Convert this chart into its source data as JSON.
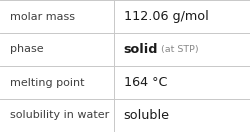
{
  "rows": [
    {
      "label": "molar mass",
      "value": "112.06 g/mol",
      "value_suffix": null,
      "value_bold": false
    },
    {
      "label": "phase",
      "value": "solid",
      "value_suffix": "(at STP)",
      "value_bold": true
    },
    {
      "label": "melting point",
      "value": "164 °C",
      "value_suffix": null,
      "value_bold": false
    },
    {
      "label": "solubility in water",
      "value": "soluble",
      "value_suffix": null,
      "value_bold": false
    }
  ],
  "col_split": 0.455,
  "bg_color": "#ffffff",
  "grid_color": "#c8c8c8",
  "label_color": "#404040",
  "value_color": "#1a1a1a",
  "suffix_color": "#888888",
  "label_fontsize": 8.0,
  "value_fontsize": 9.2,
  "suffix_fontsize": 6.8,
  "figwidth": 2.5,
  "figheight": 1.32,
  "dpi": 100
}
